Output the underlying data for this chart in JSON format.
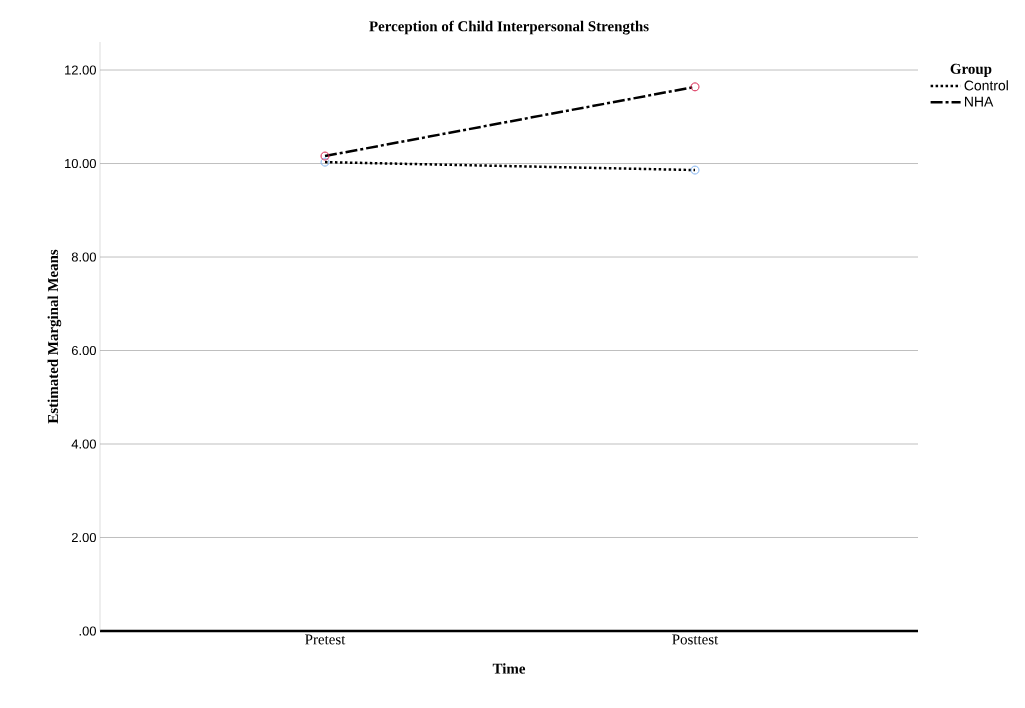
{
  "chart_data": {
    "type": "line",
    "title": "Perception of Child Interpersonal Strengths",
    "xlabel": "Time",
    "ylabel": "Estimated Marginal Means",
    "legend_title": "Group",
    "categories": [
      "Pretest",
      "Posttest"
    ],
    "series": [
      {
        "name": "Control",
        "color": "#7fb2f0",
        "values": [
          10.03,
          9.86
        ],
        "line_style": "dotted"
      },
      {
        "name": "NHA",
        "color": "#d8204c",
        "values": [
          10.16,
          11.64
        ],
        "line_style": "dashdot"
      }
    ],
    "ylim": [
      0,
      12.6
    ],
    "yticks": [
      {
        "value": 0,
        "label": ".00"
      },
      {
        "value": 2,
        "label": "2.00"
      },
      {
        "value": 4,
        "label": "4.00"
      },
      {
        "value": 6,
        "label": "6.00"
      },
      {
        "value": 8,
        "label": "8.00"
      },
      {
        "value": 10,
        "label": "10.00"
      },
      {
        "value": 12,
        "label": "12.00"
      }
    ],
    "grid": "y",
    "legend": "top right",
    "marker": "circle"
  }
}
